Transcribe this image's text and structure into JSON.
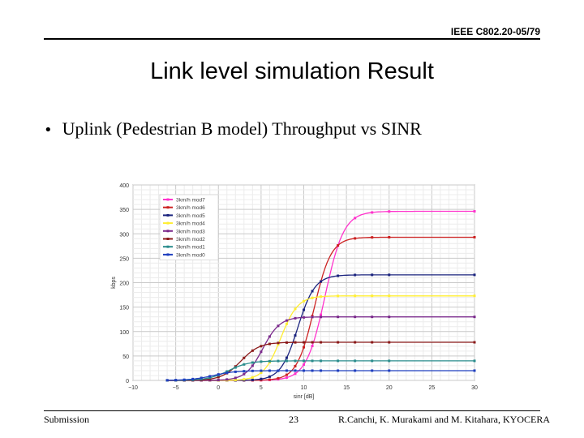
{
  "header": {
    "doc_id": "IEEE C802.20-05/79"
  },
  "title": "Link level simulation Result",
  "bullet": {
    "marker": "•",
    "text": "Uplink (Pedestrian B model) Throughput vs SINR"
  },
  "footer": {
    "left": "Submission",
    "center": "23",
    "right": "R.Canchi, K. Murakami and M. Kitahara, KYOCERA"
  },
  "chart_data": {
    "type": "line",
    "xlabel": "sinr [dB]",
    "ylabel": "kbps",
    "xlim": [
      -10,
      30
    ],
    "ylim": [
      0,
      400
    ],
    "xticks": [
      -10,
      -5,
      0,
      5,
      10,
      15,
      20,
      25,
      30
    ],
    "yticks": [
      0,
      50,
      100,
      150,
      200,
      250,
      300,
      350,
      400
    ],
    "grid": true,
    "legend_position": "top-left",
    "series": [
      {
        "name": "3km/h mod7",
        "color": "#ff33cc",
        "max": 346,
        "mid": 12.5,
        "scale": 1.1
      },
      {
        "name": "3km/h mod6",
        "color": "#cc2222",
        "max": 293,
        "mid": 11.2,
        "scale": 1.0
      },
      {
        "name": "3km/h mod5",
        "color": "#1a237e",
        "max": 216,
        "mid": 9.3,
        "scale": 1.0
      },
      {
        "name": "3km/h mod4",
        "color": "#ffee33",
        "max": 173,
        "mid": 7.3,
        "scale": 1.0
      },
      {
        "name": "3km/h mod3",
        "color": "#7b2a8c",
        "max": 130,
        "mid": 5.2,
        "scale": 1.0
      },
      {
        "name": "3km/h mod2",
        "color": "#8b1a1a",
        "max": 78,
        "mid": 2.6,
        "scale": 1.1
      },
      {
        "name": "3km/h mod1",
        "color": "#2a8c8c",
        "max": 40,
        "mid": 1.2,
        "scale": 1.2
      },
      {
        "name": "3km/h mod0",
        "color": "#1f3fbf",
        "max": 20,
        "mid": -0.6,
        "scale": 1.3
      }
    ]
  }
}
